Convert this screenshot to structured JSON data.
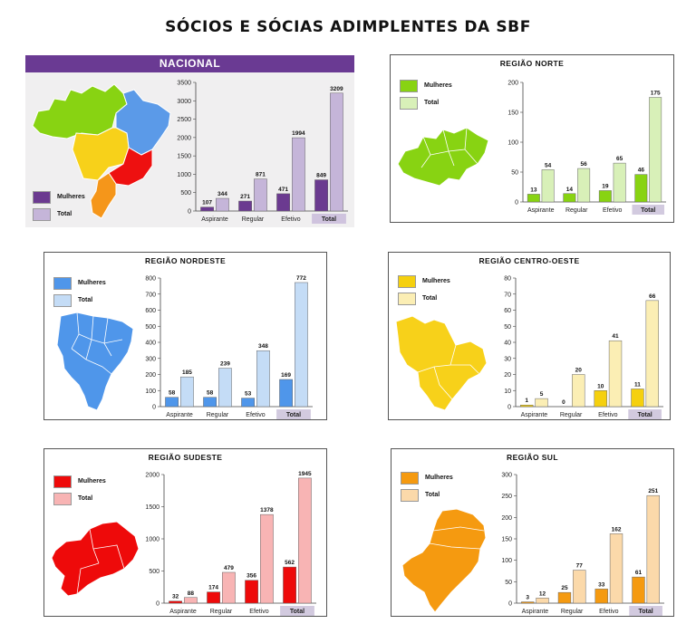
{
  "title": "SÓCIOS E SÓCIAS ADIMPLENTES DA SBF",
  "legend": {
    "women": "Mulheres",
    "total": "Total"
  },
  "panels": {
    "nacional": {
      "title": "NACIONAL",
      "colors": {
        "women": "#6b3a90",
        "total": "#c5b5d9",
        "highlight": "#cfc3de"
      },
      "chart_data": {
        "type": "bar",
        "categories": [
          "Aspirante",
          "Regular",
          "Efetivo",
          "Total"
        ],
        "series": [
          {
            "name": "Mulheres",
            "values": [
              107,
              271,
              471,
              849
            ]
          },
          {
            "name": "Total",
            "values": [
              344,
              871,
              1994,
              3209
            ]
          }
        ],
        "ylim": [
          0,
          3500
        ],
        "yticks": [
          0,
          500,
          1000,
          1500,
          2000,
          2500,
          3000,
          3500
        ],
        "grid": false,
        "highlight_category": "Total"
      }
    },
    "norte": {
      "title": "REGIÃO NORTE",
      "colors": {
        "women": "#88d312",
        "total": "#d8f0b8",
        "highlight": "#d2cadf"
      },
      "chart_data": {
        "type": "bar",
        "categories": [
          "Aspirante",
          "Regular",
          "Efetivo",
          "Total"
        ],
        "series": [
          {
            "name": "Mulheres",
            "values": [
              13,
              14,
              19,
              46
            ]
          },
          {
            "name": "Total",
            "values": [
              54,
              56,
              65,
              175
            ]
          }
        ],
        "ylim": [
          0,
          200
        ],
        "yticks": [
          0,
          50,
          100,
          150,
          200
        ],
        "grid": false,
        "highlight_category": "Total"
      }
    },
    "nordeste": {
      "title": "REGIÃO NORDESTE",
      "colors": {
        "women": "#4f96ea",
        "total": "#c4dcf6",
        "highlight": "#d2cadf"
      },
      "chart_data": {
        "type": "bar",
        "categories": [
          "Aspirante",
          "Regular",
          "Efetivo",
          "Total"
        ],
        "series": [
          {
            "name": "Mulheres",
            "values": [
              58,
              58,
              53,
              169
            ]
          },
          {
            "name": "Total",
            "values": [
              185,
              239,
              348,
              772
            ]
          }
        ],
        "ylim": [
          0,
          800
        ],
        "yticks": [
          0,
          100,
          200,
          300,
          400,
          500,
          600,
          700,
          800
        ],
        "grid": false,
        "highlight_category": "Total"
      }
    },
    "centro_oeste": {
      "title": "REGIÃO CENTRO-OESTE",
      "colors": {
        "women": "#f5d00e",
        "total": "#fbeeb4",
        "highlight": "#d2cadf"
      },
      "chart_data": {
        "type": "bar",
        "categories": [
          "Aspirante",
          "Regular",
          "Efetivo",
          "Total"
        ],
        "series": [
          {
            "name": "Mulheres",
            "values": [
              1,
              0,
              10,
              11
            ]
          },
          {
            "name": "Total",
            "values": [
              5,
              20,
              41,
              66
            ]
          }
        ],
        "ylim": [
          0,
          80
        ],
        "yticks": [
          0,
          10,
          20,
          30,
          40,
          50,
          60,
          70,
          80
        ],
        "grid": false,
        "highlight_category": "Total"
      }
    },
    "sudeste": {
      "title": "REGIÃO SUDESTE",
      "colors": {
        "women": "#ee0a0a",
        "total": "#f8b4b4",
        "highlight": "#d2cadf"
      },
      "chart_data": {
        "type": "bar",
        "categories": [
          "Aspirante",
          "Regular",
          "Efetivo",
          "Total"
        ],
        "series": [
          {
            "name": "Mulheres",
            "values": [
              32,
              174,
              356,
              562
            ]
          },
          {
            "name": "Total",
            "values": [
              88,
              479,
              1378,
              1945
            ]
          }
        ],
        "ylim": [
          0,
          2000
        ],
        "yticks": [
          0,
          500,
          1000,
          1500,
          2000
        ],
        "grid": false,
        "highlight_category": "Total"
      }
    },
    "sul": {
      "title": "REGIÃO SUL",
      "colors": {
        "women": "#f59a10",
        "total": "#fbd9aa",
        "highlight": "#d2cadf"
      },
      "chart_data": {
        "type": "bar",
        "categories": [
          "Aspirante",
          "Regular",
          "Efetivo",
          "Total"
        ],
        "series": [
          {
            "name": "Mulheres",
            "values": [
              3,
              25,
              33,
              61
            ]
          },
          {
            "name": "Total",
            "values": [
              12,
              77,
              162,
              251
            ]
          }
        ],
        "ylim": [
          0,
          300
        ],
        "yticks": [
          0,
          50,
          100,
          150,
          200,
          250,
          300
        ],
        "grid": false,
        "highlight_category": "Total"
      }
    }
  }
}
